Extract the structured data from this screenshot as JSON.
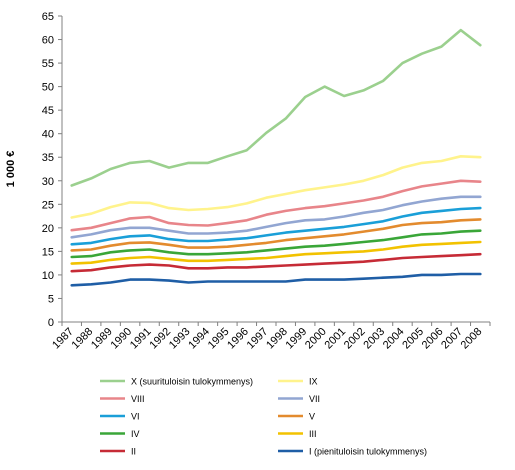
{
  "chart_data": {
    "type": "line",
    "title": "",
    "xlabel": "",
    "ylabel": "1 000 €",
    "ylim": [
      0,
      65
    ],
    "yticks": [
      0,
      5,
      10,
      15,
      20,
      25,
      30,
      35,
      40,
      45,
      50,
      55,
      60,
      65
    ],
    "grid": false,
    "legend_position": "bottom",
    "x": [
      "1987",
      "1988",
      "1989",
      "1990",
      "1991",
      "1992",
      "1993",
      "1994",
      "1995",
      "1996",
      "1997",
      "1998",
      "1999",
      "2000",
      "2001",
      "2002",
      "2003",
      "2004",
      "2005",
      "2006",
      "2007",
      "2008"
    ],
    "series": [
      {
        "name": "X (suurituloisin tulokymmenys)",
        "color": "#9bd08e",
        "values": [
          29,
          30.5,
          32.5,
          33.8,
          34.2,
          32.8,
          33.8,
          33.8,
          35.2,
          36.5,
          40.2,
          43.2,
          47.8,
          50,
          48,
          49.2,
          51.2,
          55,
          57,
          58.5,
          62,
          58.8
        ]
      },
      {
        "name": "IX",
        "color": "#fff38c",
        "values": [
          22.2,
          23,
          24.4,
          25.4,
          25.3,
          24.2,
          23.8,
          24,
          24.4,
          25.2,
          26.4,
          27.2,
          28,
          28.6,
          29.2,
          30,
          31.2,
          32.8,
          33.8,
          34.2,
          35.2,
          35
        ]
      },
      {
        "name": "VIII",
        "color": "#e8858a",
        "values": [
          19.5,
          20,
          21,
          22,
          22.3,
          21,
          20.6,
          20.5,
          21,
          21.6,
          22.8,
          23.6,
          24.2,
          24.6,
          25.2,
          25.8,
          26.6,
          27.8,
          28.8,
          29.4,
          30,
          29.8
        ]
      },
      {
        "name": "VII",
        "color": "#92a6d2",
        "values": [
          18,
          18.6,
          19.5,
          20,
          20,
          19.4,
          18.8,
          18.8,
          19,
          19.4,
          20.2,
          21,
          21.6,
          21.8,
          22.4,
          23.2,
          23.8,
          24.8,
          25.6,
          26.2,
          26.6,
          26.6
        ]
      },
      {
        "name": "VI",
        "color": "#1a9fd8",
        "values": [
          16.5,
          16.8,
          17.6,
          18.2,
          18.4,
          17.6,
          17.2,
          17.2,
          17.5,
          17.8,
          18.4,
          19,
          19.4,
          19.8,
          20.2,
          20.8,
          21.4,
          22.4,
          23.2,
          23.6,
          24,
          24.2
        ]
      },
      {
        "name": "V",
        "color": "#e38b2e",
        "values": [
          15.2,
          15.4,
          16.2,
          16.8,
          16.9,
          16.4,
          15.8,
          15.8,
          16,
          16.4,
          16.8,
          17.4,
          17.8,
          18.2,
          18.6,
          19.2,
          19.8,
          20.6,
          21,
          21.2,
          21.6,
          21.8
        ]
      },
      {
        "name": "IV",
        "color": "#3aa638",
        "values": [
          13.8,
          14,
          14.8,
          15.2,
          15.4,
          14.8,
          14.4,
          14.4,
          14.6,
          14.8,
          15.2,
          15.6,
          16,
          16.2,
          16.6,
          17,
          17.4,
          18,
          18.6,
          18.8,
          19.2,
          19.4
        ]
      },
      {
        "name": "III",
        "color": "#f2c200",
        "values": [
          12.4,
          12.6,
          13.2,
          13.6,
          13.8,
          13.4,
          13,
          13,
          13.2,
          13.4,
          13.6,
          14,
          14.4,
          14.6,
          14.8,
          15,
          15.4,
          16,
          16.4,
          16.6,
          16.8,
          17
        ]
      },
      {
        "name": "II",
        "color": "#c62b36",
        "values": [
          10.8,
          11,
          11.6,
          12,
          12.2,
          12,
          11.4,
          11.4,
          11.6,
          11.6,
          11.8,
          12,
          12.2,
          12.4,
          12.6,
          12.8,
          13.2,
          13.6,
          13.8,
          14,
          14.2,
          14.4
        ]
      },
      {
        "name": "I (pienituloisin tulokymmenys)",
        "color": "#1f5ea6",
        "values": [
          7.8,
          8,
          8.4,
          9,
          9,
          8.8,
          8.4,
          8.6,
          8.6,
          8.6,
          8.6,
          8.6,
          9,
          9,
          9,
          9.2,
          9.4,
          9.6,
          10,
          10,
          10.2,
          10.2
        ]
      }
    ]
  }
}
